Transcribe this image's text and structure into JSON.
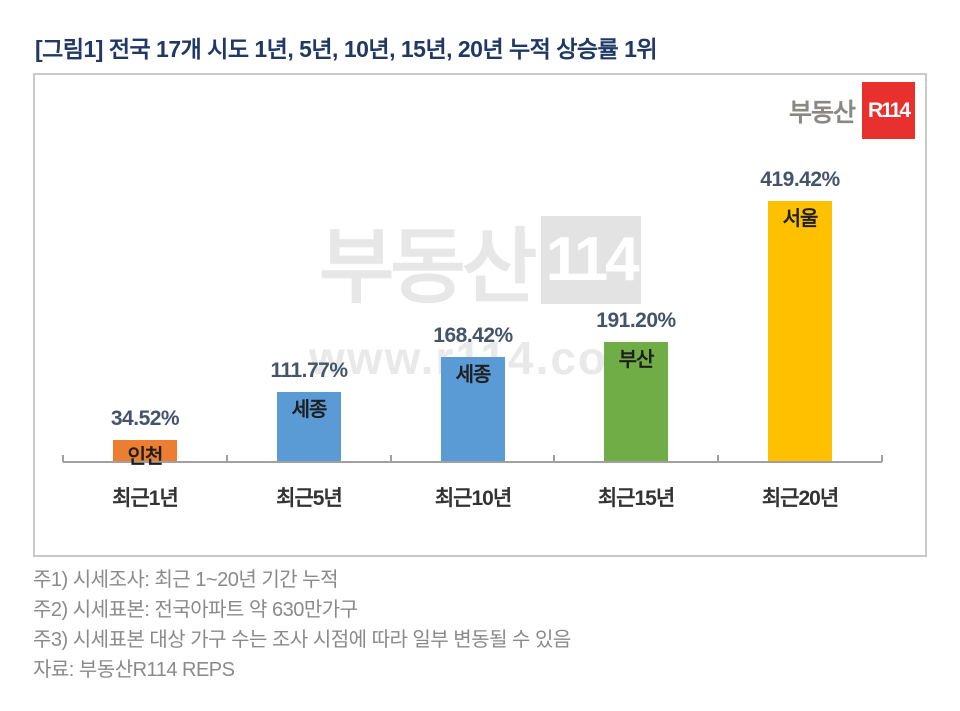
{
  "page": {
    "title": "[그림1] 전국 17개 시도 1년, 5년, 10년, 15년, 20년 누적 상승률 1위"
  },
  "logo": {
    "prefix": "부동산",
    "badge": "R114",
    "badge_color": "#e8312f"
  },
  "watermark": {
    "brand": "부동산",
    "badge": "114",
    "url": "www.r114.com"
  },
  "chart_data": {
    "type": "bar",
    "title": "전국 17개 시도 1년, 5년, 10년, 15년, 20년 누적 상승률 1위",
    "categories": [
      "최근1년",
      "최근5년",
      "최근10년",
      "최근15년",
      "최근20년"
    ],
    "values": [
      34.52,
      111.77,
      168.42,
      191.2,
      419.42
    ],
    "value_labels": [
      "34.52%",
      "111.77%",
      "168.42%",
      "191.20%",
      "419.42%"
    ],
    "bar_city_labels": [
      "인천",
      "세종",
      "세종",
      "부산",
      "서울"
    ],
    "bar_colors": [
      "#ED7D31",
      "#5B9BD5",
      "#5B9BD5",
      "#70AD47",
      "#FFC000"
    ],
    "xlabel": "",
    "ylabel": "",
    "ylim": [
      0,
      450
    ],
    "grid": false,
    "legend": false,
    "axis_color": "#a0a0a0"
  },
  "notes": {
    "line1": "주1) 시세조사: 최근 1~20년 기간 누적",
    "line2": "주2) 시세표본: 전국아파트 약 630만가구",
    "line3": "주3) 시세표본 대상 가구 수는 조사 시점에 따라 일부 변동될 수 있음",
    "source": "자료: 부동산R114 REPS"
  }
}
